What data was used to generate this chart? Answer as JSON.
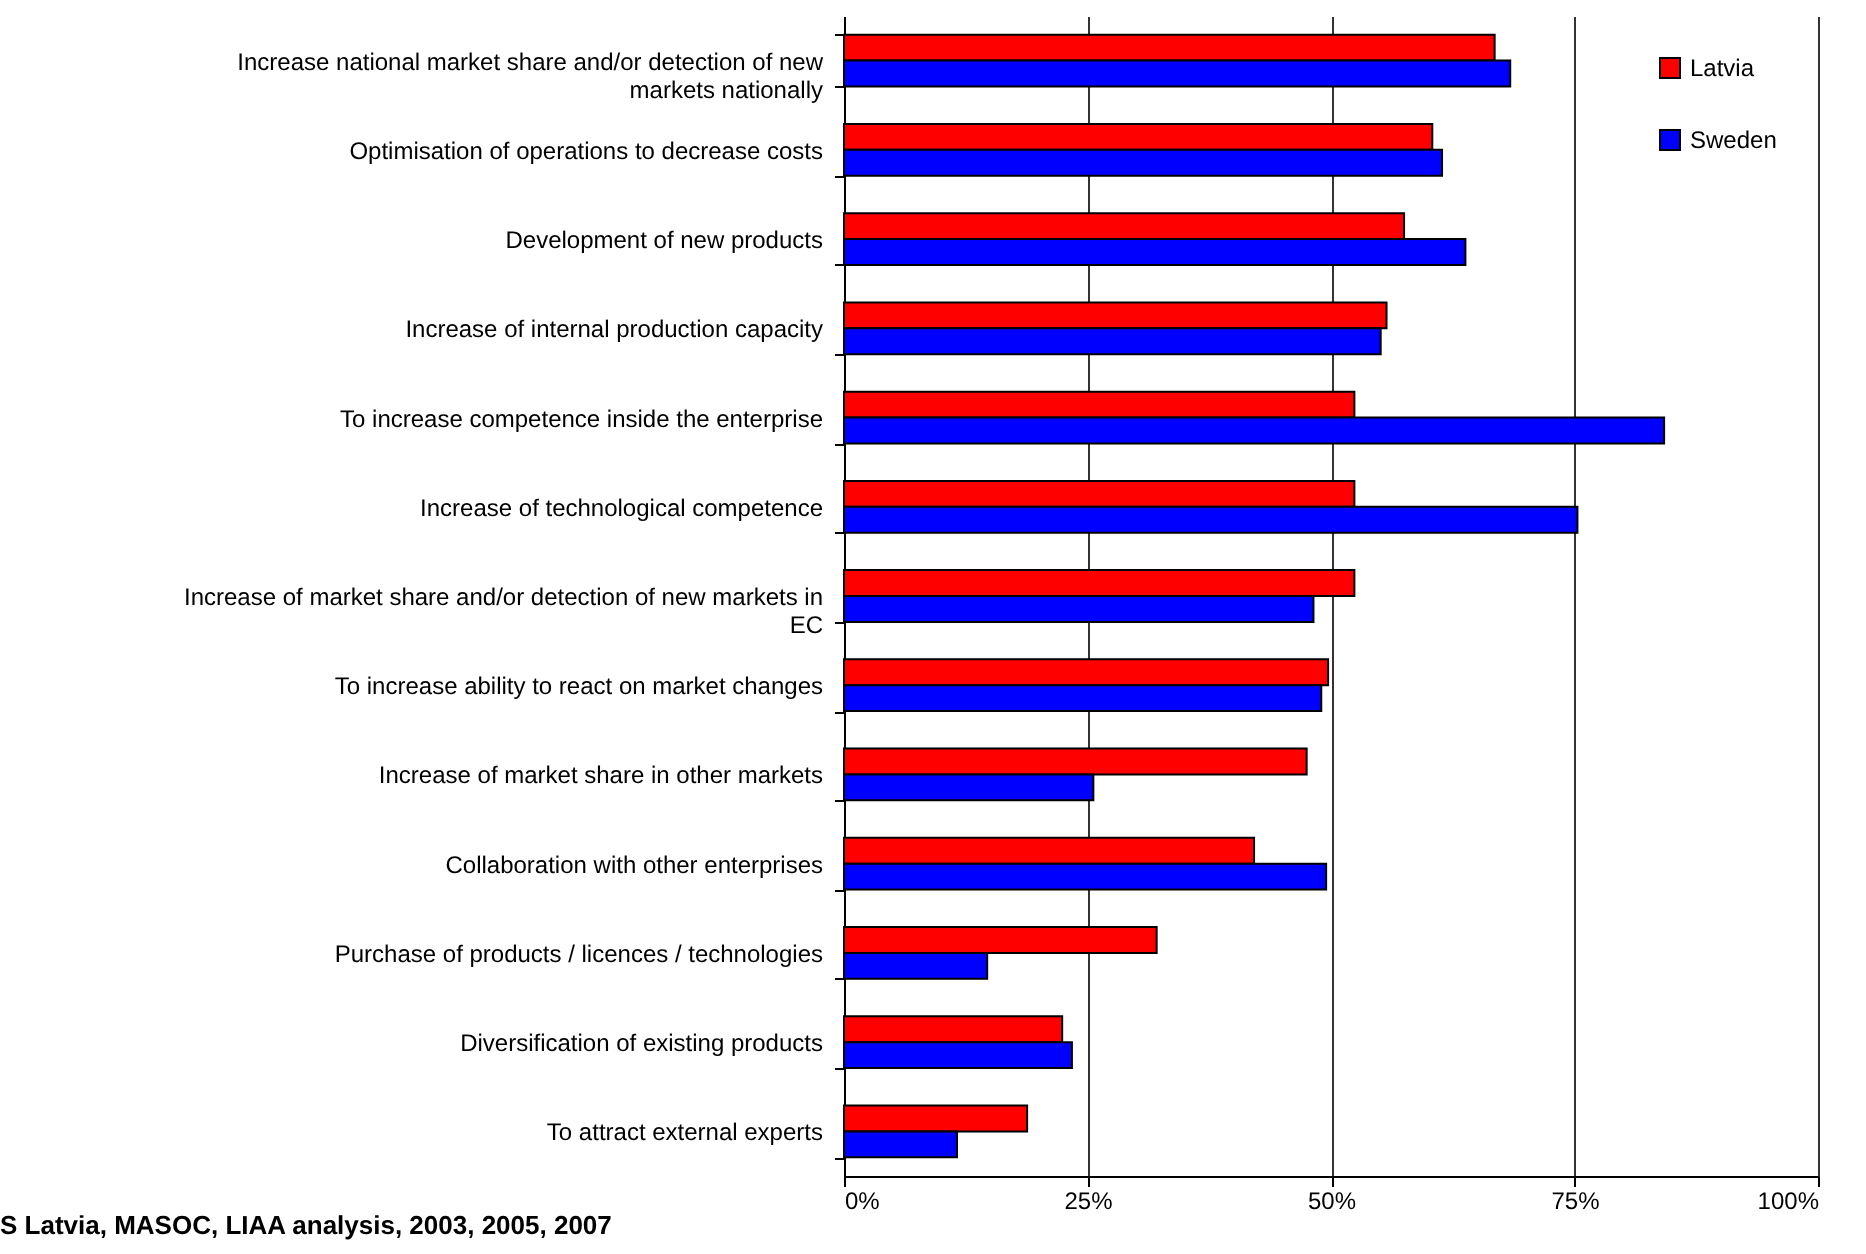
{
  "chart_data": {
    "type": "bar",
    "orientation": "horizontal",
    "categories": [
      "Increase national market share and/or detection of new markets nationally",
      "Optimisation of operations to decrease costs",
      "Development of new products",
      "Increase of internal production capacity",
      "To increase competence inside the enterprise",
      "Increase of technological competence",
      "Increase of market share and/or detection of new markets in EC",
      "To increase ability to react on market changes",
      "Increase of market share in other markets",
      "Collaboration with other enterprises",
      "Purchase of products / licences / technologies",
      "Diversification of existing products",
      "To attract external experts"
    ],
    "series": [
      {
        "name": "Latvia",
        "color": "#ff0000",
        "values": [
          66.8,
          60.4,
          57.5,
          55.7,
          52.4,
          52.4,
          52.4,
          49.7,
          47.5,
          42.1,
          32.1,
          22.4,
          18.8
        ]
      },
      {
        "name": "Sweden",
        "color": "#0000ff",
        "values": [
          68.4,
          61.4,
          63.8,
          55.1,
          84.2,
          75.3,
          48.2,
          49.0,
          25.6,
          49.5,
          14.7,
          23.4,
          11.6
        ]
      }
    ],
    "xlim": [
      0,
      100
    ],
    "xticks": [
      {
        "value": 0,
        "label": "0%"
      },
      {
        "value": 25,
        "label": "25%"
      },
      {
        "value": 50,
        "label": "50%"
      },
      {
        "value": 75,
        "label": "75%"
      },
      {
        "value": 100,
        "label": "100%"
      }
    ],
    "grid": "x",
    "legend": "top right",
    "annotations": [
      "S Latvia, MASOC, LIAA analysis, 2003, 2005, 2007"
    ]
  }
}
